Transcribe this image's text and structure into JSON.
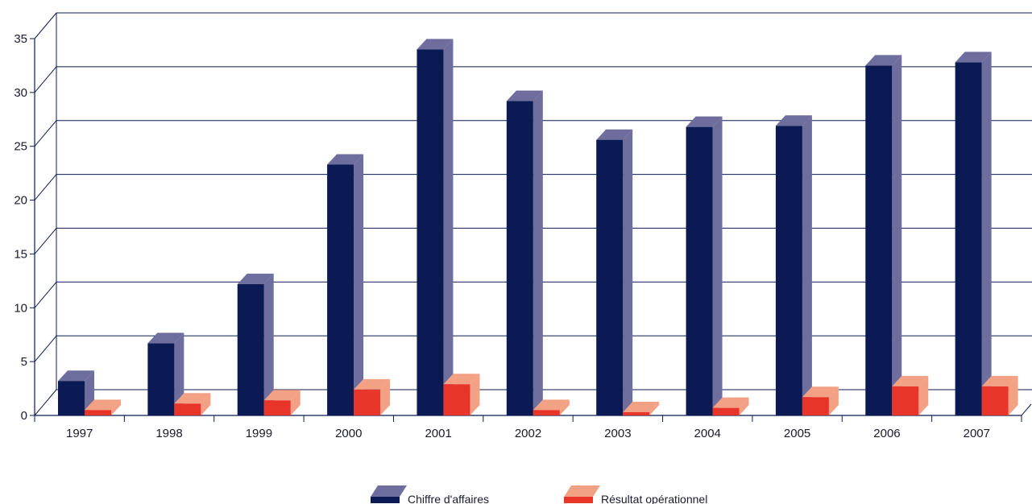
{
  "chart_data": {
    "type": "bar",
    "categories": [
      "1997",
      "1998",
      "1999",
      "2000",
      "2001",
      "2002",
      "2003",
      "2004",
      "2005",
      "2006",
      "2007"
    ],
    "series": [
      {
        "name": "Chiffre d'affaires",
        "values": [
          3.2,
          6.7,
          12.2,
          23.3,
          34.0,
          29.2,
          25.6,
          26.8,
          26.9,
          32.5,
          32.8
        ],
        "color": "#0b1a52",
        "top_color": "#6e6e9e",
        "side_color": "#6e6e9e"
      },
      {
        "name": "Résultat opérationnel",
        "values": [
          0.5,
          1.1,
          1.4,
          2.4,
          2.9,
          0.5,
          0.3,
          0.7,
          1.7,
          2.7,
          2.7
        ],
        "color": "#e8352a",
        "top_color": "#f2a185",
        "side_color": "#f2a185"
      }
    ],
    "yticks": [
      "0",
      "5",
      "10",
      "15",
      "20",
      "25",
      "30",
      "35"
    ],
    "ylim": [
      0,
      35
    ],
    "grid": true,
    "legend_position": "bottom-center",
    "axis_color": "#0b1a52"
  }
}
